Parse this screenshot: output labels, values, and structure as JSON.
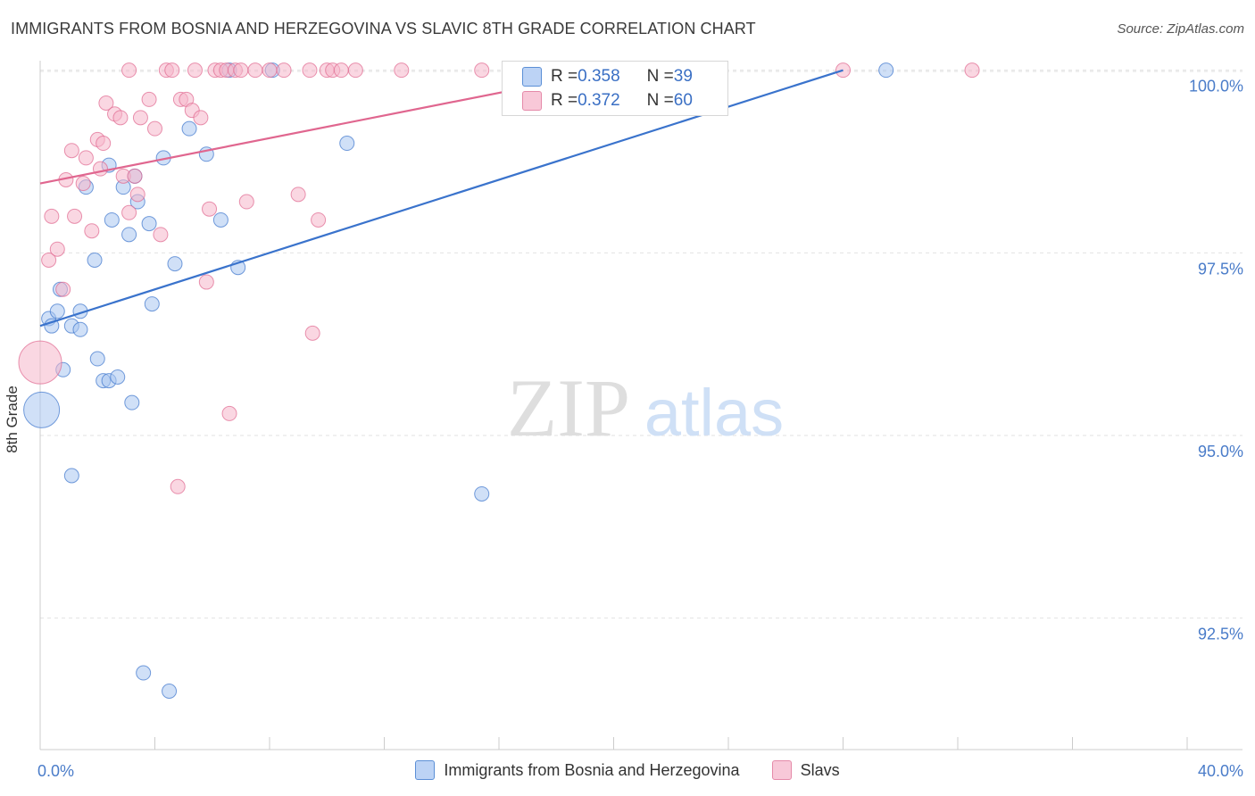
{
  "title": "IMMIGRANTS FROM BOSNIA AND HERZEGOVINA VS SLAVIC 8TH GRADE CORRELATION CHART",
  "source": "Source: ZipAtlas.com",
  "watermark": {
    "zip": "ZIP",
    "atlas": "atlas"
  },
  "colors": {
    "blue": "#3a73cc",
    "blue_fill": "#a9c6f0",
    "pink": "#e0668f",
    "pink_fill": "#f6b6cb",
    "tick_label": "#4a7cc9"
  },
  "legend_box": {
    "rows": [
      {
        "swatch": "blue",
        "r_label": "R = ",
        "r_value": "0.358",
        "n_label": "N = ",
        "n_value": "39"
      },
      {
        "swatch": "pink",
        "r_label": "R = ",
        "r_value": "0.372",
        "n_label": "N = ",
        "n_value": "60"
      }
    ]
  },
  "chart_data": {
    "type": "scatter",
    "title": "IMMIGRANTS FROM BOSNIA AND HERZEGOVINA VS SLAVIC 8TH GRADE CORRELATION CHART",
    "xlabel": "",
    "ylabel": "8th Grade",
    "xlim": [
      0,
      40
    ],
    "ylim": [
      90.7,
      100.35
    ],
    "x_tick_labels": [
      "0.0%",
      "40.0%"
    ],
    "y_ticks": [
      92.5,
      95.0,
      97.5,
      100.0
    ],
    "y_tick_labels": [
      "92.5%",
      "95.0%",
      "97.5%",
      "100.0%"
    ],
    "grid": "horizontal dashed",
    "legend_placement": "bottom",
    "series": [
      {
        "name": "Immigrants from Bosnia and Herzegovina",
        "color": "blue",
        "r": 0.358,
        "n": 39,
        "trend": {
          "x": [
            0.0,
            28.0
          ],
          "y": [
            96.5,
            100.0
          ]
        },
        "points": [
          [
            0.05,
            95.35,
            3
          ],
          [
            0.3,
            96.6,
            1
          ],
          [
            0.4,
            96.5,
            1
          ],
          [
            0.6,
            96.7,
            1
          ],
          [
            0.7,
            97.0,
            1
          ],
          [
            0.8,
            95.9,
            1
          ],
          [
            1.1,
            96.5,
            1
          ],
          [
            1.1,
            94.45,
            1
          ],
          [
            1.4,
            96.45,
            1
          ],
          [
            1.4,
            96.7,
            1
          ],
          [
            1.6,
            98.4,
            1
          ],
          [
            1.9,
            97.4,
            1
          ],
          [
            2.0,
            96.05,
            1
          ],
          [
            2.2,
            95.75,
            1
          ],
          [
            2.4,
            95.75,
            1
          ],
          [
            2.4,
            98.7,
            1
          ],
          [
            2.5,
            97.95,
            1
          ],
          [
            2.7,
            95.8,
            1
          ],
          [
            2.9,
            98.4,
            1
          ],
          [
            3.1,
            97.75,
            1
          ],
          [
            3.2,
            95.45,
            1
          ],
          [
            3.3,
            98.55,
            1
          ],
          [
            3.4,
            98.2,
            1
          ],
          [
            3.6,
            91.75,
            1
          ],
          [
            3.8,
            97.9,
            1
          ],
          [
            3.9,
            96.8,
            1
          ],
          [
            4.3,
            98.8,
            1
          ],
          [
            4.5,
            91.5,
            1
          ],
          [
            4.7,
            97.35,
            1
          ],
          [
            5.2,
            99.2,
            1
          ],
          [
            5.8,
            98.85,
            1
          ],
          [
            6.3,
            97.95,
            1
          ],
          [
            6.6,
            100.0,
            1
          ],
          [
            6.9,
            97.3,
            1
          ],
          [
            8.1,
            100.0,
            1
          ],
          [
            10.7,
            99.0,
            1
          ],
          [
            15.4,
            94.2,
            1
          ],
          [
            20.5,
            100.0,
            1
          ],
          [
            29.5,
            100.0,
            1
          ]
        ]
      },
      {
        "name": "Slavs",
        "color": "pink",
        "r": 0.372,
        "n": 60,
        "trend": {
          "x": [
            0.0,
            20.0
          ],
          "y": [
            98.45,
            100.0
          ]
        },
        "points": [
          [
            0.0,
            96.0,
            4
          ],
          [
            0.3,
            97.4,
            1
          ],
          [
            0.4,
            98.0,
            1
          ],
          [
            0.6,
            97.55,
            1
          ],
          [
            0.8,
            97.0,
            1
          ],
          [
            0.9,
            98.5,
            1
          ],
          [
            1.1,
            98.9,
            1
          ],
          [
            1.2,
            98.0,
            1
          ],
          [
            1.5,
            98.45,
            1
          ],
          [
            1.6,
            98.8,
            1
          ],
          [
            1.8,
            97.8,
            1
          ],
          [
            2.0,
            99.05,
            1
          ],
          [
            2.1,
            98.65,
            1
          ],
          [
            2.2,
            99.0,
            1
          ],
          [
            2.3,
            99.55,
            1
          ],
          [
            2.6,
            99.4,
            1
          ],
          [
            2.8,
            99.35,
            1
          ],
          [
            2.9,
            98.55,
            1
          ],
          [
            3.1,
            98.05,
            1
          ],
          [
            3.1,
            100.0,
            1
          ],
          [
            3.3,
            98.55,
            1
          ],
          [
            3.4,
            98.3,
            1
          ],
          [
            3.5,
            99.35,
            1
          ],
          [
            3.8,
            99.6,
            1
          ],
          [
            4.0,
            99.2,
            1
          ],
          [
            4.2,
            97.75,
            1
          ],
          [
            4.4,
            100.0,
            1
          ],
          [
            4.6,
            100.0,
            1
          ],
          [
            4.8,
            94.3,
            1
          ],
          [
            4.9,
            99.6,
            1
          ],
          [
            5.1,
            99.6,
            1
          ],
          [
            5.3,
            99.45,
            1
          ],
          [
            5.4,
            100.0,
            1
          ],
          [
            5.6,
            99.35,
            1
          ],
          [
            5.8,
            97.1,
            1
          ],
          [
            5.9,
            98.1,
            1
          ],
          [
            6.1,
            100.0,
            1
          ],
          [
            6.3,
            100.0,
            1
          ],
          [
            6.5,
            100.0,
            1
          ],
          [
            6.6,
            95.3,
            1
          ],
          [
            6.8,
            100.0,
            1
          ],
          [
            7.0,
            100.0,
            1
          ],
          [
            7.2,
            98.2,
            1
          ],
          [
            7.5,
            100.0,
            1
          ],
          [
            8.0,
            100.0,
            1
          ],
          [
            8.5,
            100.0,
            1
          ],
          [
            9.0,
            98.3,
            1
          ],
          [
            9.4,
            100.0,
            1
          ],
          [
            9.5,
            96.4,
            1
          ],
          [
            9.7,
            97.95,
            1
          ],
          [
            10.0,
            100.0,
            1
          ],
          [
            10.2,
            100.0,
            1
          ],
          [
            10.5,
            100.0,
            1
          ],
          [
            11.0,
            100.0,
            1
          ],
          [
            12.6,
            100.0,
            1
          ],
          [
            15.4,
            100.0,
            1
          ],
          [
            18.0,
            100.0,
            1
          ],
          [
            20.0,
            100.0,
            1
          ],
          [
            28.0,
            100.0,
            1
          ],
          [
            32.5,
            100.0,
            1
          ]
        ]
      }
    ]
  }
}
